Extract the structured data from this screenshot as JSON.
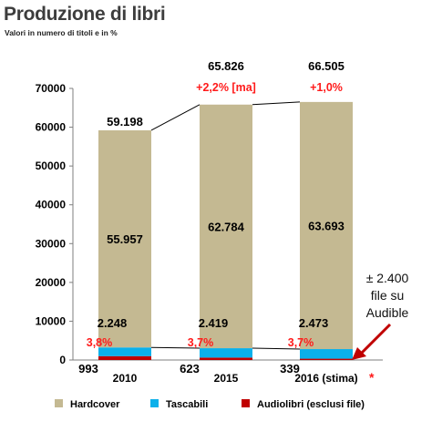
{
  "title": "Produzione di libri",
  "subtitle": "Valori in  numero di titoli e in %",
  "annotation": {
    "line1": "± 2.400",
    "line2": "file su",
    "line3": "Audible",
    "arrow_color": "#c00000"
  },
  "footnote_marker": "*",
  "colors": {
    "Hardcover": "#c4b992",
    "Tascabili": "#0bb0ea",
    "Audiolibri (esclusi file)": "#c00000"
  },
  "chart_data": {
    "type": "bar",
    "stacked": true,
    "categories": [
      "2010",
      "2015",
      "2016 (stima)"
    ],
    "yticks": [
      "0",
      "10000",
      "20000",
      "30000",
      "40000",
      "50000",
      "60000",
      "70000"
    ],
    "ylim": [
      0,
      70000
    ],
    "legend_position": "bottom",
    "series": [
      {
        "name": "Audiolibri (esclusi file)",
        "values": [
          993,
          623,
          339
        ]
      },
      {
        "name": "Tascabili",
        "values": [
          2248,
          2419,
          2473
        ]
      },
      {
        "name": "Hardcover",
        "values": [
          55957,
          62784,
          63693
        ]
      }
    ],
    "labels": {
      "audiolibri": [
        "993",
        "623",
        "339"
      ],
      "tascabili": [
        "2.248",
        "2.419",
        "2.473"
      ],
      "hardcover": [
        "55.957",
        "62.784",
        "63.693"
      ],
      "totals": [
        "59.198",
        "65.826",
        "66.505"
      ],
      "tascabili_share": [
        "3,8%",
        "3,7%",
        "3,7%"
      ],
      "growth": [
        "",
        "+2,2% [ma]",
        "+1,0%"
      ]
    },
    "totals": [
      59198,
      65826,
      66505
    ],
    "legend": [
      "Hardcover",
      "Tascabili",
      "Audiolibri (esclusi file)"
    ]
  }
}
